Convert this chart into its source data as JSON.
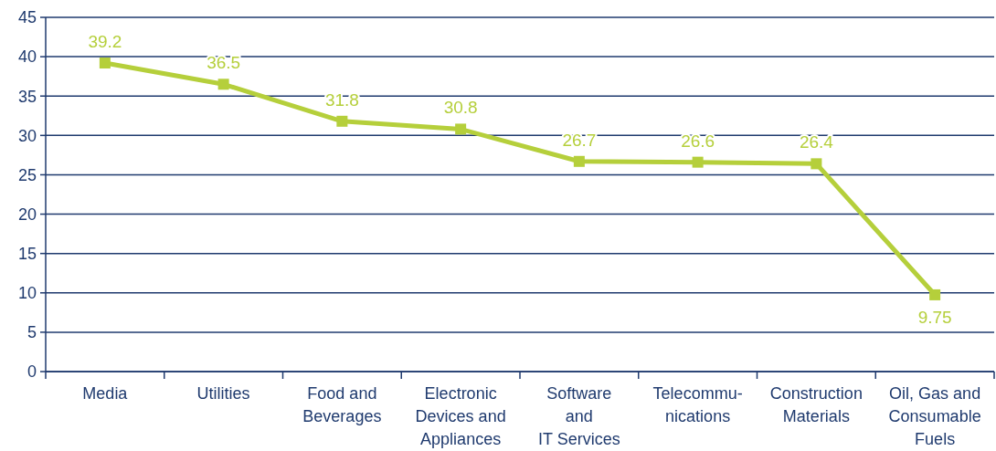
{
  "chart_data": {
    "type": "line",
    "categories": [
      "Media",
      "Utilities",
      "Food and\nBeverages",
      "Electronic\nDevices and\nAppliances",
      "Software\nand\nIT Services",
      "Telecommu-\nnications",
      "Construction\nMaterials",
      "Oil, Gas and\nConsumable\nFuels"
    ],
    "series": [
      {
        "color": "#b5cf3b",
        "values": [
          39.2,
          36.5,
          31.8,
          30.8,
          26.7,
          26.6,
          26.4,
          9.75
        ]
      }
    ],
    "ylim": [
      0,
      45
    ],
    "yticks": [
      0,
      5,
      10,
      15,
      20,
      25,
      30,
      35,
      40,
      45
    ],
    "grid": "y",
    "marker": "square",
    "line_style": "solid",
    "data_labels": true
  }
}
